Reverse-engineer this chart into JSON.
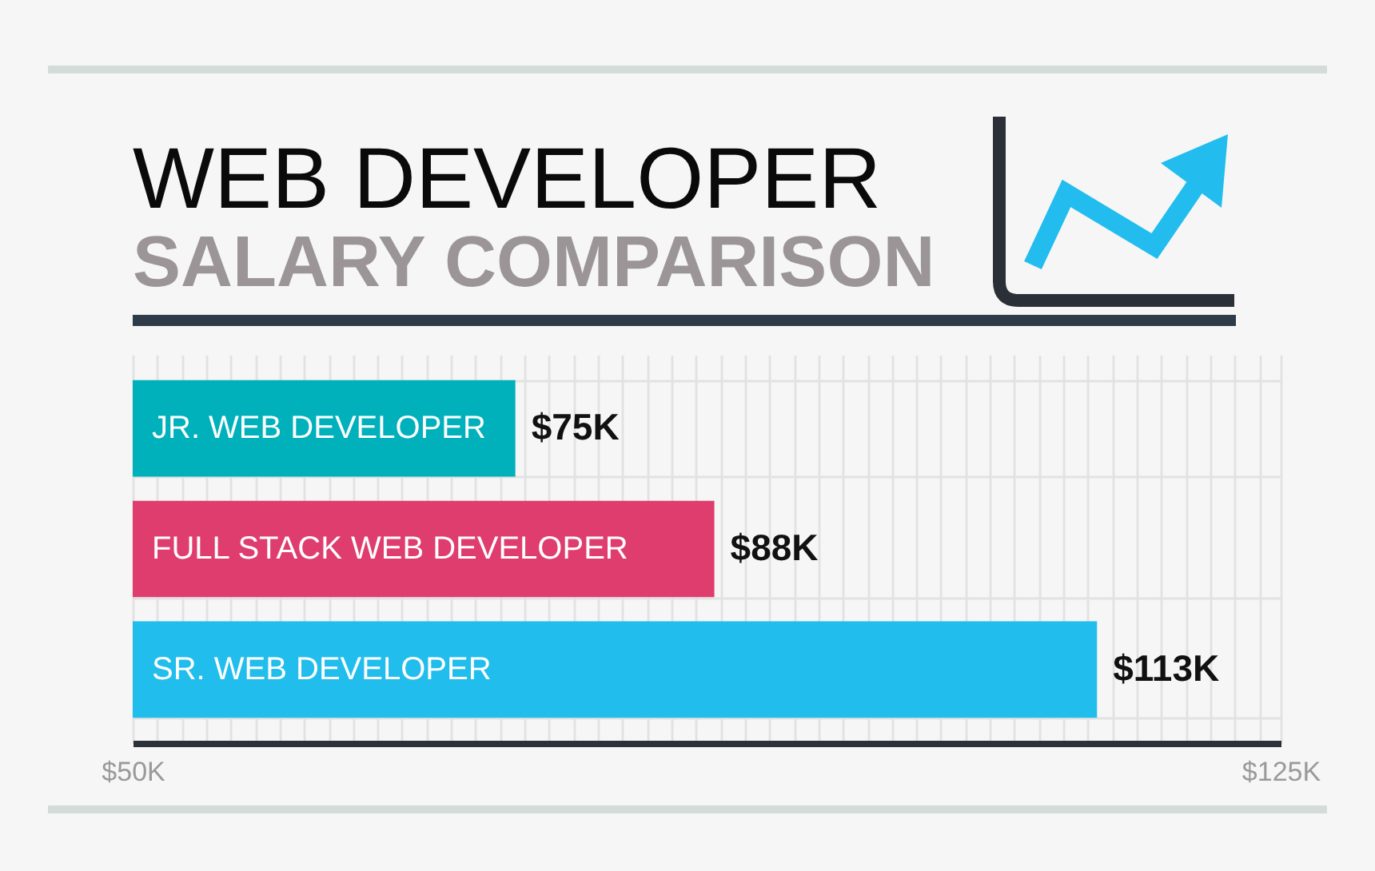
{
  "chart_data": {
    "type": "bar",
    "orientation": "horizontal",
    "title": "WEB DEVELOPER",
    "subtitle": "SALARY COMPARISON",
    "categories": [
      "JR. WEB DEVELOPER",
      "FULL STACK WEB DEVELOPER",
      "SR. WEB DEVELOPER"
    ],
    "values": [
      75,
      88,
      113
    ],
    "colors": [
      "#00b1bb",
      "#de3d6e",
      "#21bded"
    ],
    "value_labels": [
      "$75K",
      "$88K",
      "$113K"
    ],
    "xlim": [
      50,
      125
    ],
    "xticks": [
      {
        "value": 50,
        "label": "$50K"
      },
      {
        "value": 51.6,
        "label": null
      },
      {
        "value": 53.2,
        "label": null
      },
      {
        "value": 54.8,
        "label": null
      },
      {
        "value": 56.4,
        "label": null
      },
      {
        "value": 58,
        "label": null
      },
      {
        "value": 59.6,
        "label": null
      },
      {
        "value": 61.2,
        "label": null
      },
      {
        "value": 62.8,
        "label": null
      },
      {
        "value": 64.4,
        "label": null
      },
      {
        "value": 66,
        "label": null
      },
      {
        "value": 67.6,
        "label": null
      },
      {
        "value": 69.2,
        "label": null
      },
      {
        "value": 70.8,
        "label": null
      },
      {
        "value": 72.4,
        "label": null
      },
      {
        "value": 74,
        "label": null
      },
      {
        "value": 75.6,
        "label": null
      },
      {
        "value": 77.2,
        "label": null
      },
      {
        "value": 78.8,
        "label": null
      },
      {
        "value": 80.4,
        "label": null
      },
      {
        "value": 82,
        "label": null
      },
      {
        "value": 83.6,
        "label": null
      },
      {
        "value": 85.2,
        "label": null
      },
      {
        "value": 86.8,
        "label": null
      },
      {
        "value": 88.4,
        "label": null
      },
      {
        "value": 90,
        "label": null
      },
      {
        "value": 91.6,
        "label": null
      },
      {
        "value": 93.2,
        "label": null
      },
      {
        "value": 94.8,
        "label": null
      },
      {
        "value": 96.4,
        "label": null
      },
      {
        "value": 98,
        "label": null
      },
      {
        "value": 99.6,
        "label": null
      },
      {
        "value": 101.2,
        "label": null
      },
      {
        "value": 102.8,
        "label": null
      },
      {
        "value": 104.4,
        "label": null
      },
      {
        "value": 106,
        "label": null
      },
      {
        "value": 107.6,
        "label": null
      },
      {
        "value": 109.2,
        "label": null
      },
      {
        "value": 110.8,
        "label": null
      },
      {
        "value": 112.4,
        "label": null
      },
      {
        "value": 114,
        "label": null
      },
      {
        "value": 115.6,
        "label": null
      },
      {
        "value": 117.2,
        "label": null
      },
      {
        "value": 118.8,
        "label": null
      },
      {
        "value": 120.4,
        "label": null
      },
      {
        "value": 122,
        "label": null
      },
      {
        "value": 123.6,
        "label": null
      },
      {
        "value": 125,
        "label": "$125K"
      }
    ],
    "grid": true
  }
}
